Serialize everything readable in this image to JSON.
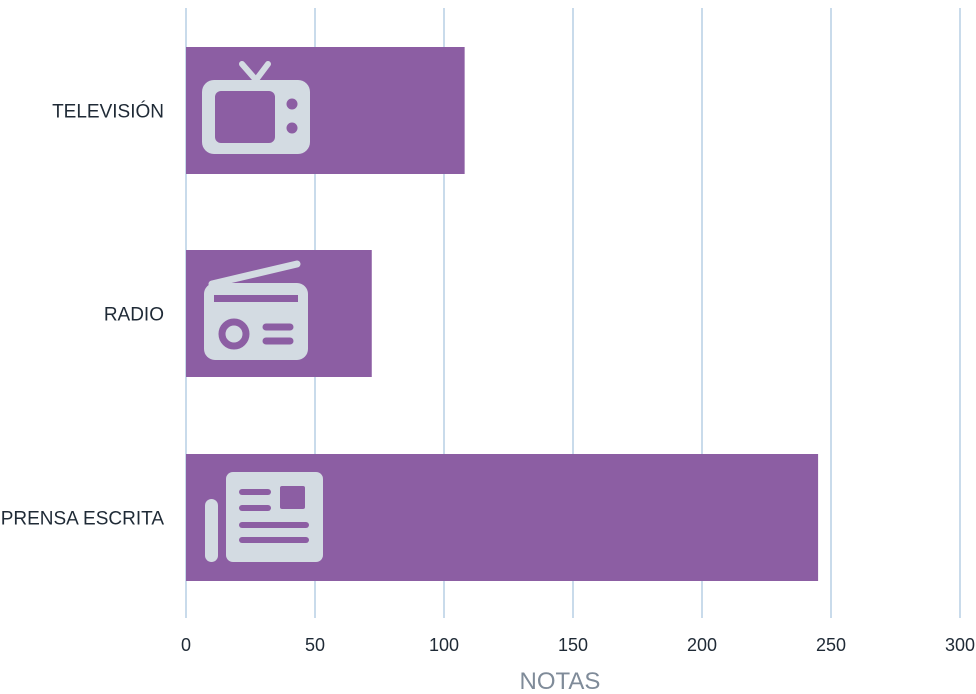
{
  "chart_data": {
    "type": "bar",
    "orientation": "horizontal",
    "categories": [
      "TELEVISIÓN",
      "RADIO",
      "PRENSA ESCRITA"
    ],
    "values": [
      108,
      72,
      245
    ],
    "icons": [
      "tv-icon",
      "radio-icon",
      "newspaper-icon"
    ],
    "xlabel": "NOTAS",
    "ylabel": "",
    "xlim": [
      0,
      300
    ],
    "xticks": [
      0,
      50,
      100,
      150,
      200,
      250,
      300
    ],
    "grid": true,
    "legend": "none"
  },
  "colors": {
    "bar": "#8c5ea3",
    "icon": "#d3dbe2",
    "grid": "#c9dbeb",
    "text": "#1f2a36",
    "axis_title": "#7f8b99"
  }
}
